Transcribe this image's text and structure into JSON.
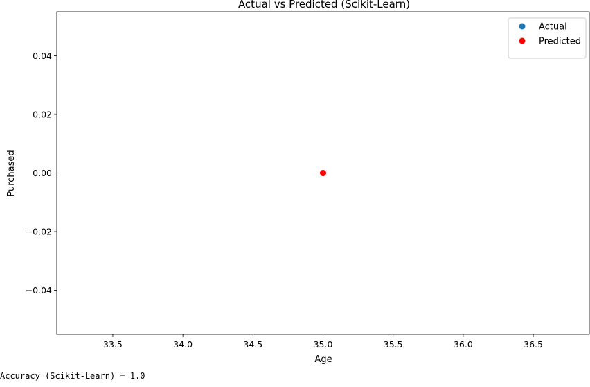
{
  "chart_data": {
    "type": "scatter",
    "title": "Actual vs Predicted (Scikit-Learn)",
    "xlabel": "Age",
    "ylabel": "Purchased",
    "xlim": [
      33.1,
      36.9
    ],
    "ylim": [
      -0.055,
      0.055
    ],
    "x_ticks": [
      33.5,
      34.0,
      34.5,
      35.0,
      35.5,
      36.0,
      36.5
    ],
    "y_ticks": [
      -0.04,
      -0.02,
      0.0,
      0.02,
      0.04
    ],
    "x_tick_labels": [
      "33.5",
      "34.0",
      "34.5",
      "35.0",
      "35.5",
      "36.0",
      "36.5"
    ],
    "y_tick_labels": [
      "−0.04",
      "−0.02",
      "0.00",
      "0.02",
      "0.04"
    ],
    "grid": false,
    "legend_position": "top-right",
    "series": [
      {
        "name": "Actual",
        "color": "#1f77b4",
        "points": [
          {
            "x": 35,
            "y": 0
          }
        ]
      },
      {
        "name": "Predicted",
        "color": "#ff0000",
        "points": [
          {
            "x": 35,
            "y": 0
          }
        ]
      }
    ]
  },
  "output_text": "Accuracy (Scikit-Learn) = 1.0"
}
